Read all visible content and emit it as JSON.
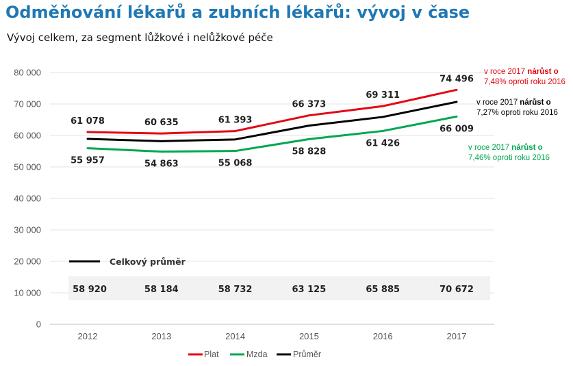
{
  "title": "Odměňování lékařů a zubních lékařů: vývoj v čase",
  "subtitle": "Vývoj celkem, za segment lůžkové i nelůžkové péče",
  "colors": {
    "plat": "#e30613",
    "mzda": "#00a651",
    "prumer": "#000000",
    "title": "#1f78b4"
  },
  "annotations": {
    "plat": {
      "line1_prefix": "v roce 2017 ",
      "line1_bold": "nárůst o",
      "line2": "7,48% oproti roku 2016"
    },
    "prumer": {
      "line1_prefix": "v roce 2017 ",
      "line1_bold": "nárůst o",
      "line2": "7,27% oproti roku 2016"
    },
    "mzda": {
      "line1_prefix": "v roce 2017 ",
      "line1_bold": "nárůst o",
      "line2": "7,46% oproti roku 2016"
    }
  },
  "chart_data": {
    "type": "line",
    "categories": [
      "2012",
      "2013",
      "2014",
      "2015",
      "2016",
      "2017"
    ],
    "ylim": [
      0,
      80000
    ],
    "yticks": [
      0,
      10000,
      20000,
      30000,
      40000,
      50000,
      60000,
      70000,
      80000
    ],
    "ytick_labels": [
      "0",
      "10 000",
      "20 000",
      "30 000",
      "40 000",
      "50 000",
      "60 000",
      "70 000",
      "80 000"
    ],
    "grid": true,
    "series": [
      {
        "name": "Plat",
        "values": [
          61078,
          60635,
          61393,
          66373,
          69311,
          74496
        ],
        "labels": [
          "61 078",
          "60 635",
          "61 393",
          "66 373",
          "69 311",
          "74 496"
        ]
      },
      {
        "name": "Mzda",
        "values": [
          55957,
          54863,
          55068,
          58828,
          61426,
          66009
        ],
        "labels": [
          "55 957",
          "54 863",
          "55 068",
          "58 828",
          "61 426",
          "66 009"
        ]
      },
      {
        "name": "Průměr",
        "values": [
          58920,
          58184,
          58732,
          63125,
          65885,
          70672
        ]
      }
    ],
    "table": {
      "legend_label": "Celkový průměr",
      "values": [
        "58 920",
        "58 184",
        "58 732",
        "63 125",
        "65 885",
        "70 672"
      ]
    },
    "legend": {
      "position": "bottom",
      "items": [
        "Plat",
        "Mzda",
        "Průměr"
      ]
    }
  }
}
